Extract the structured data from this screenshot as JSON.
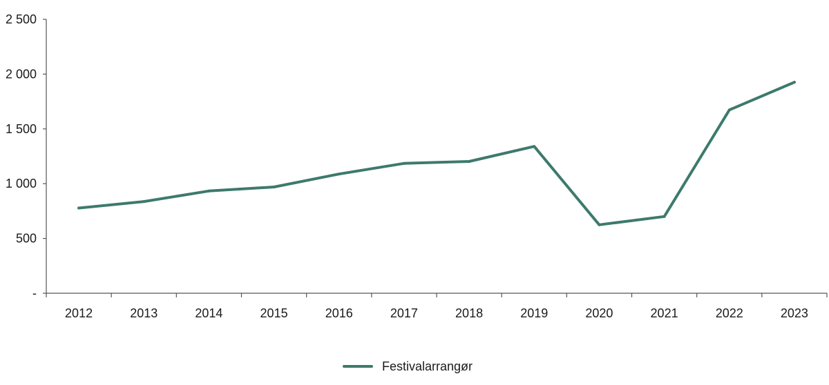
{
  "chart_data": {
    "type": "line",
    "title": "",
    "xlabel": "",
    "ylabel": "",
    "categories": [
      "2012",
      "2013",
      "2014",
      "2015",
      "2016",
      "2017",
      "2018",
      "2019",
      "2020",
      "2021",
      "2022",
      "2023"
    ],
    "series": [
      {
        "name": "Festivalarrangør",
        "color": "#3d7a6c",
        "values": [
          778,
          837,
          933,
          970,
          1088,
          1185,
          1203,
          1340,
          625,
          700,
          1673,
          1926
        ]
      }
    ],
    "ylim": [
      0,
      2500
    ],
    "yticks": [
      0,
      500,
      1000,
      1500,
      2000,
      2500
    ],
    "ytick_labels": [
      "-",
      "500",
      "1 000",
      "1 500",
      "2 000",
      "2 500"
    ],
    "grid": false,
    "legend": "bottom-center"
  }
}
